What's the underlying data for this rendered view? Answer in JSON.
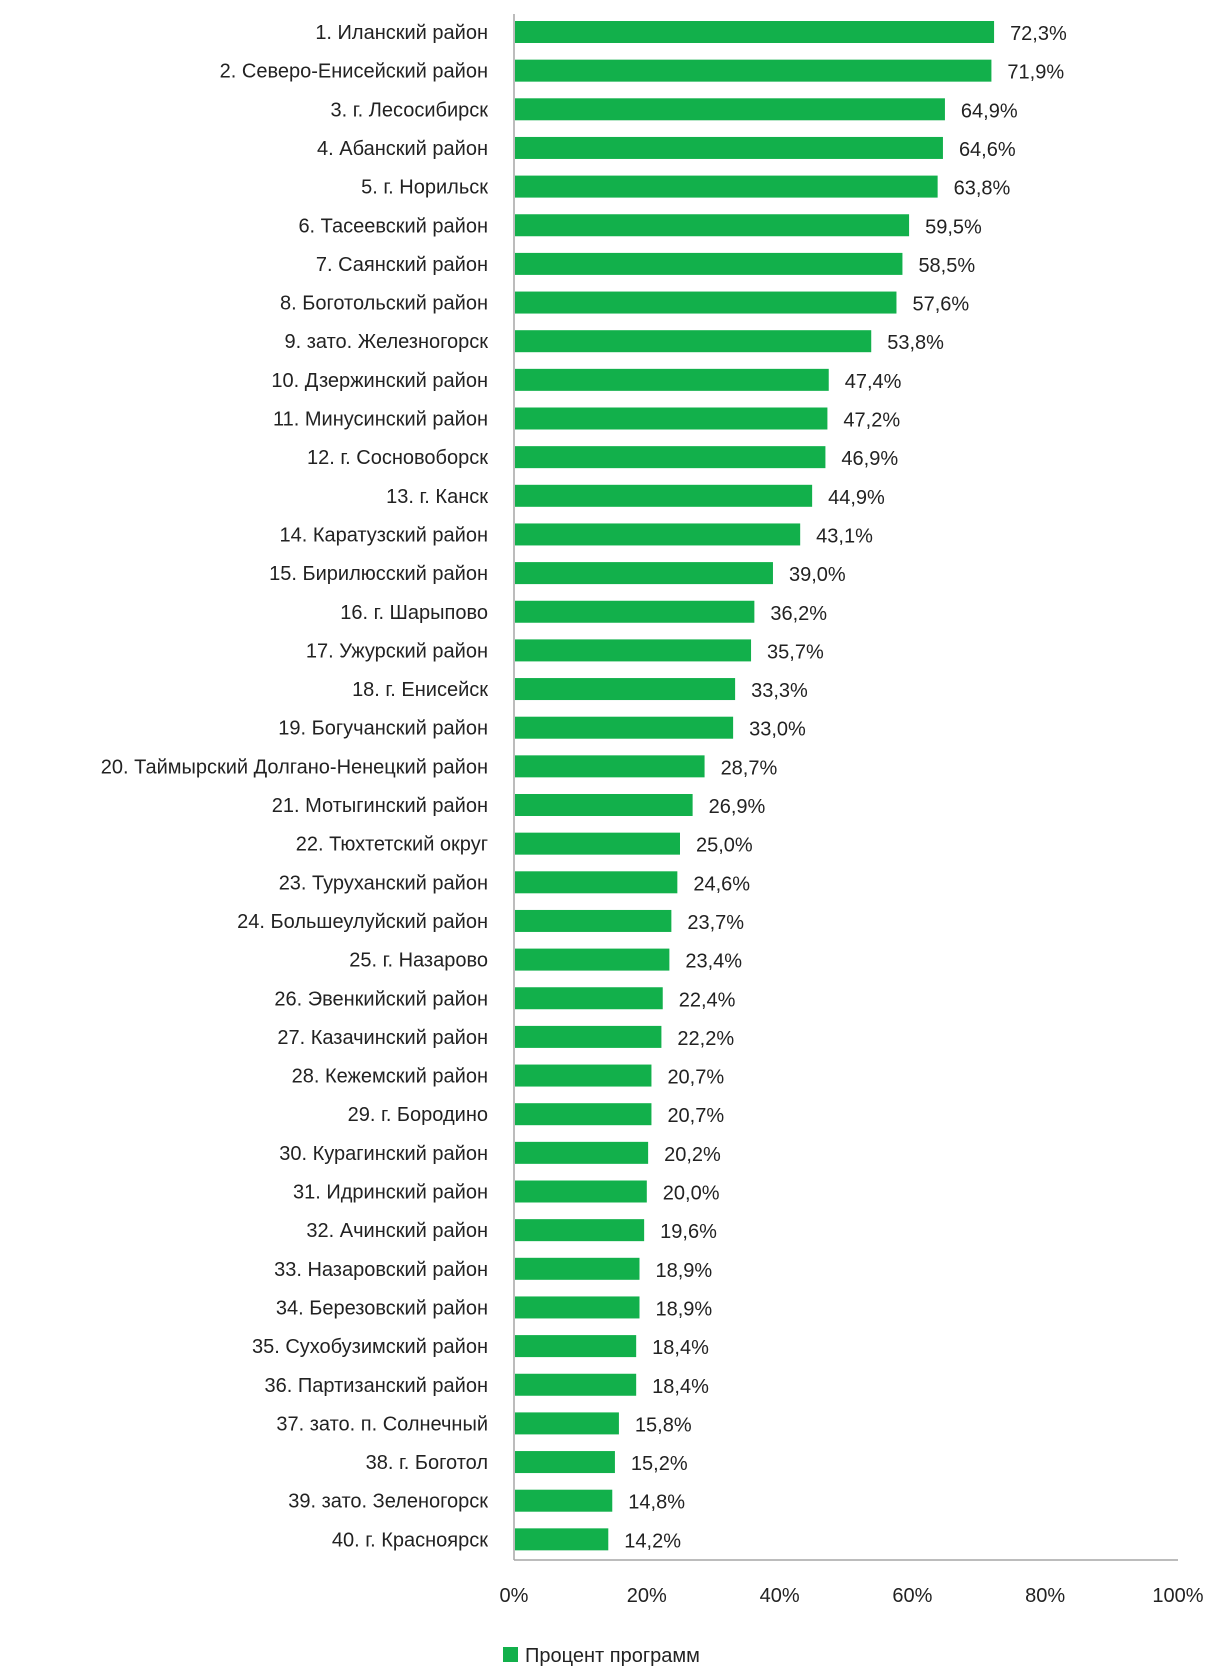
{
  "chart_data": {
    "type": "bar",
    "orientation": "horizontal",
    "title": "",
    "xlabel": "",
    "ylabel": "",
    "xlim": [
      0,
      100
    ],
    "x_ticks": [
      "0%",
      "20%",
      "40%",
      "60%",
      "80%",
      "100%"
    ],
    "grid": false,
    "legend_position": "bottom",
    "bar_color": "#12b04b",
    "categories": [
      "1. Иланский район",
      "2. Северо-Енисейский район",
      "3. г. Лесосибирск",
      "4. Абанский район",
      "5. г. Норильск",
      "6. Тасеевский район",
      "7. Саянский район",
      "8. Боготольский район",
      "9. зато. Железногорск",
      "10. Дзержинский район",
      "11. Минусинский район",
      "12. г. Сосновоборск",
      "13. г. Канск",
      "14. Каратузский район",
      "15. Бирилюсский район",
      "16. г. Шарыпово",
      "17. Ужурский район",
      "18. г. Енисейск",
      "19. Богучанский район",
      "20. Таймырский Долгано-Ненецкий район",
      "21. Мотыгинский район",
      "22. Тюхтетский округ",
      "23. Туруханский район",
      "24. Большеулуйский район",
      "25. г. Назарово",
      "26. Эвенкийский район",
      "27. Казачинский район",
      "28. Кежемский район",
      "29. г. Бородино",
      "30. Курагинский район",
      "31. Идринский район",
      "32. Ачинский район",
      "33. Назаровский район",
      "34. Березовский район",
      "35. Сухобузимский район",
      "36. Партизанский район",
      "37. зато. п. Солнечный",
      "38. г. Боготол",
      "39. зато. Зеленогорск",
      "40. г. Красноярск"
    ],
    "series": [
      {
        "name": "Процент программ",
        "values": [
          72.3,
          71.9,
          64.9,
          64.6,
          63.8,
          59.5,
          58.5,
          57.6,
          53.8,
          47.4,
          47.2,
          46.9,
          44.9,
          43.1,
          39.0,
          36.2,
          35.7,
          33.3,
          33.0,
          28.7,
          26.9,
          25.0,
          24.6,
          23.7,
          23.4,
          22.4,
          22.2,
          20.7,
          20.7,
          20.2,
          20.0,
          19.6,
          18.9,
          18.9,
          18.4,
          18.4,
          15.8,
          15.2,
          14.8,
          14.2
        ],
        "value_labels": [
          "72,3%",
          "71,9%",
          "64,9%",
          "64,6%",
          "63,8%",
          "59,5%",
          "58,5%",
          "57,6%",
          "53,8%",
          "47,4%",
          "47,2%",
          "46,9%",
          "44,9%",
          "43,1%",
          "39,0%",
          "36,2%",
          "35,7%",
          "33,3%",
          "33,0%",
          "28,7%",
          "26,9%",
          "25,0%",
          "24,6%",
          "23,7%",
          "23,4%",
          "22,4%",
          "22,2%",
          "20,7%",
          "20,7%",
          "20,2%",
          "20,0%",
          "19,6%",
          "18,9%",
          "18,9%",
          "18,4%",
          "18,4%",
          "15,8%",
          "15,2%",
          "14,8%",
          "14,2%"
        ]
      }
    ]
  }
}
